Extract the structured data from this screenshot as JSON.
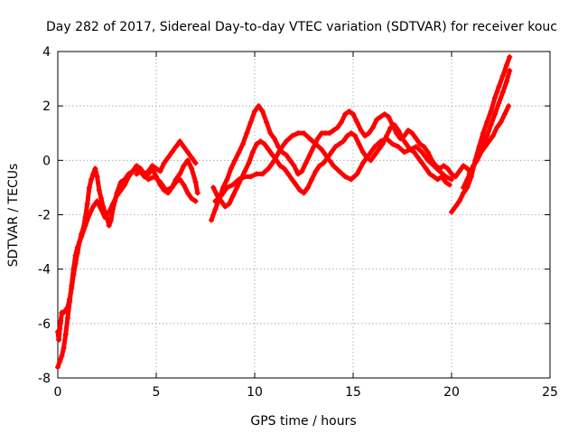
{
  "chart_data": {
    "type": "scatter",
    "title": "Day 282 of 2017, Sidereal Day-to-day VTEC variation (SDTVAR) for receiver kouc",
    "xlabel": "GPS time / hours",
    "ylabel": "SDTVAR / TECUs",
    "xlim": [
      0,
      25
    ],
    "ylim": [
      -8,
      4
    ],
    "xticks": [
      0,
      5,
      10,
      15,
      20,
      25
    ],
    "yticks": [
      -8,
      -6,
      -4,
      -2,
      0,
      2,
      4
    ],
    "grid": true,
    "legend": "none",
    "marker": "plus",
    "color": "#ff0000",
    "series": [
      {
        "x": [
          0.0,
          0.05,
          0.1,
          0.15,
          0.2,
          0.3,
          0.4,
          0.5,
          0.6,
          0.7,
          0.8,
          0.9,
          1.0,
          1.1,
          1.2,
          1.3,
          1.4,
          1.5,
          1.6,
          1.7,
          1.8,
          1.9,
          2.0,
          2.1,
          2.2,
          2.3,
          2.4,
          2.5,
          2.6,
          2.7,
          2.8,
          2.9,
          3.0,
          3.2,
          3.4,
          3.6,
          3.8,
          4.0,
          4.2,
          4.4,
          4.6,
          4.8,
          5.0,
          5.2,
          5.4,
          5.6,
          5.8,
          6.0,
          6.2,
          6.4,
          6.6,
          6.8,
          7.0
        ],
        "y": [
          -6.3,
          -6.6,
          -6.2,
          -5.9,
          -5.6,
          -5.6,
          -5.5,
          -5.4,
          -5.1,
          -4.7,
          -4.2,
          -3.8,
          -3.4,
          -3.0,
          -2.7,
          -2.5,
          -2.1,
          -1.6,
          -1.0,
          -0.7,
          -0.5,
          -0.3,
          -0.6,
          -1.1,
          -1.4,
          -1.7,
          -1.9,
          -2.1,
          -2.4,
          -2.2,
          -1.8,
          -1.5,
          -1.2,
          -0.8,
          -0.7,
          -0.5,
          -0.4,
          -0.2,
          -0.3,
          -0.5,
          -0.4,
          -0.2,
          -0.3,
          -0.4,
          -0.1,
          0.1,
          0.3,
          0.5,
          0.7,
          0.5,
          0.3,
          0.1,
          -0.1
        ]
      },
      {
        "x": [
          0.0,
          0.1,
          0.2,
          0.3,
          0.4,
          0.5,
          0.6,
          0.7,
          0.8,
          0.9,
          1.0,
          1.2,
          1.4,
          1.6,
          1.8,
          2.0,
          2.2,
          2.4,
          2.6,
          2.8,
          3.0,
          3.2,
          3.4,
          3.6,
          3.8,
          4.0,
          4.3,
          4.6,
          4.9,
          5.2,
          5.5,
          5.8,
          6.0,
          6.2,
          6.4,
          6.6,
          6.8,
          7.0
        ],
        "y": [
          -7.6,
          -7.4,
          -7.2,
          -6.9,
          -6.4,
          -5.8,
          -5.2,
          -4.6,
          -4.0,
          -3.5,
          -3.2,
          -2.8,
          -2.4,
          -2.0,
          -1.7,
          -1.5,
          -1.8,
          -2.1,
          -1.9,
          -1.6,
          -1.3,
          -1.1,
          -0.9,
          -0.6,
          -0.4,
          -0.3,
          -0.5,
          -0.7,
          -0.6,
          -0.8,
          -1.1,
          -1.0,
          -0.8,
          -0.7,
          -0.9,
          -1.2,
          -1.4,
          -1.5
        ]
      },
      {
        "x": [
          4.0,
          4.2,
          4.4,
          4.6,
          4.8,
          5.0,
          5.2,
          5.4,
          5.6,
          5.8,
          6.0,
          6.2,
          6.4,
          6.6,
          6.8,
          7.0,
          7.1
        ],
        "y": [
          -0.5,
          -0.4,
          -0.6,
          -0.5,
          -0.3,
          -0.6,
          -0.9,
          -1.1,
          -1.2,
          -1.0,
          -0.7,
          -0.5,
          -0.2,
          0.0,
          -0.3,
          -0.8,
          -1.2
        ]
      },
      {
        "x": [
          7.8,
          8.0,
          8.2,
          8.4,
          8.6,
          8.8,
          9.0,
          9.2,
          9.4,
          9.6,
          9.8,
          10.0,
          10.2,
          10.4,
          10.6,
          10.8,
          11.0,
          11.2,
          11.4,
          11.6,
          11.8,
          12.0,
          12.2,
          12.4,
          12.6,
          12.8,
          13.0,
          13.2,
          13.4,
          13.6,
          13.8,
          14.0,
          14.2,
          14.4,
          14.6,
          14.8,
          15.0,
          15.2,
          15.4,
          15.6,
          15.8,
          16.0,
          16.2,
          16.4,
          16.6,
          16.8,
          17.0,
          17.2,
          17.4,
          17.6,
          17.8,
          18.0,
          18.2,
          18.4,
          18.6,
          18.8,
          19.0,
          19.2,
          19.4,
          19.6,
          19.8,
          20.0,
          20.2,
          20.4,
          20.6,
          20.8,
          21.0
        ],
        "y": [
          -2.2,
          -1.8,
          -1.4,
          -1.0,
          -0.7,
          -0.3,
          0.0,
          0.3,
          0.6,
          1.0,
          1.4,
          1.8,
          2.0,
          1.8,
          1.4,
          1.0,
          0.8,
          0.5,
          0.3,
          0.2,
          0.0,
          -0.2,
          -0.5,
          -0.4,
          -0.1,
          0.2,
          0.5,
          0.8,
          1.0,
          1.0,
          1.0,
          1.1,
          1.2,
          1.4,
          1.7,
          1.8,
          1.7,
          1.4,
          1.1,
          0.9,
          1.0,
          1.2,
          1.5,
          1.6,
          1.7,
          1.6,
          1.3,
          1.0,
          0.8,
          0.9,
          1.1,
          1.0,
          0.8,
          0.6,
          0.5,
          0.3,
          0.0,
          -0.2,
          -0.3,
          -0.2,
          -0.3,
          -0.5,
          -0.6,
          -0.4,
          -0.2,
          -0.3,
          -0.5
        ]
      },
      {
        "x": [
          7.9,
          8.1,
          8.3,
          8.5,
          8.7,
          8.9,
          9.1,
          9.3,
          9.5,
          9.7,
          9.9,
          10.1,
          10.3,
          10.5,
          10.7,
          10.9,
          11.1,
          11.3,
          11.5,
          11.7,
          11.9,
          12.1,
          12.3,
          12.5,
          12.7,
          12.9,
          13.1,
          13.3,
          13.5,
          13.7,
          13.9,
          14.1,
          14.3,
          14.5,
          14.7,
          14.9,
          15.1,
          15.3,
          15.5,
          15.7,
          15.9,
          16.1,
          16.3,
          16.5,
          16.7,
          16.9,
          17.1,
          17.3,
          17.5,
          17.7,
          17.9,
          18.1,
          18.3,
          18.5,
          18.7,
          18.9,
          19.1,
          19.3,
          19.5,
          19.7,
          19.9
        ],
        "y": [
          -1.0,
          -1.3,
          -1.5,
          -1.7,
          -1.6,
          -1.3,
          -1.0,
          -0.7,
          -0.4,
          -0.1,
          0.3,
          0.6,
          0.7,
          0.6,
          0.4,
          0.2,
          0.0,
          -0.2,
          -0.3,
          -0.5,
          -0.7,
          -0.9,
          -1.1,
          -1.2,
          -1.0,
          -0.7,
          -0.4,
          -0.2,
          -0.1,
          0.1,
          0.3,
          0.5,
          0.6,
          0.7,
          0.9,
          1.0,
          0.9,
          0.6,
          0.3,
          0.1,
          0.0,
          0.2,
          0.4,
          0.6,
          0.9,
          1.2,
          1.3,
          1.1,
          0.8,
          0.6,
          0.4,
          0.3,
          0.1,
          -0.1,
          -0.3,
          -0.5,
          -0.6,
          -0.7,
          -0.6,
          -0.8,
          -0.9
        ]
      },
      {
        "x": [
          8.0,
          8.3,
          8.6,
          8.9,
          9.2,
          9.5,
          9.8,
          10.1,
          10.4,
          10.7,
          11.0,
          11.3,
          11.6,
          11.9,
          12.2,
          12.5,
          12.8,
          13.1,
          13.4,
          13.7,
          14.0,
          14.3,
          14.6,
          14.9,
          15.2,
          15.5,
          15.8,
          16.1,
          16.4,
          16.7,
          17.0,
          17.3,
          17.6,
          17.9,
          18.2,
          18.5,
          18.8,
          19.1,
          19.4,
          19.7,
          20.0
        ],
        "y": [
          -1.5,
          -1.3,
          -1.0,
          -0.9,
          -0.7,
          -0.6,
          -0.6,
          -0.5,
          -0.5,
          -0.3,
          0.0,
          0.4,
          0.7,
          0.9,
          1.0,
          1.0,
          0.8,
          0.6,
          0.4,
          0.1,
          -0.2,
          -0.4,
          -0.6,
          -0.7,
          -0.5,
          -0.1,
          0.2,
          0.5,
          0.7,
          0.8,
          0.6,
          0.5,
          0.3,
          0.4,
          0.5,
          0.3,
          0.0,
          -0.2,
          -0.4,
          -0.6,
          -0.7
        ]
      },
      {
        "x": [
          20.0,
          20.2,
          20.4,
          20.6,
          20.8,
          21.0,
          21.2,
          21.4,
          21.6,
          21.8,
          22.0,
          22.2,
          22.4,
          22.6,
          22.8,
          22.95
        ],
        "y": [
          -1.9,
          -1.7,
          -1.5,
          -1.2,
          -1.0,
          -0.6,
          0.0,
          0.5,
          1.0,
          1.4,
          1.8,
          2.3,
          2.7,
          3.1,
          3.5,
          3.8
        ]
      },
      {
        "x": [
          20.6,
          20.8,
          21.0,
          21.2,
          21.4,
          21.6,
          21.8,
          22.0,
          22.2,
          22.4,
          22.6,
          22.8,
          22.95
        ],
        "y": [
          -1.0,
          -0.7,
          -0.4,
          -0.1,
          0.2,
          0.5,
          0.9,
          1.3,
          1.7,
          2.1,
          2.5,
          2.9,
          3.3
        ]
      },
      {
        "x": [
          20.9,
          21.1,
          21.3,
          21.5,
          21.7,
          21.9,
          22.1,
          22.3,
          22.5,
          22.7,
          22.9
        ],
        "y": [
          -0.5,
          -0.2,
          0.0,
          0.3,
          0.5,
          0.7,
          0.9,
          1.2,
          1.4,
          1.7,
          2.0
        ]
      }
    ]
  }
}
